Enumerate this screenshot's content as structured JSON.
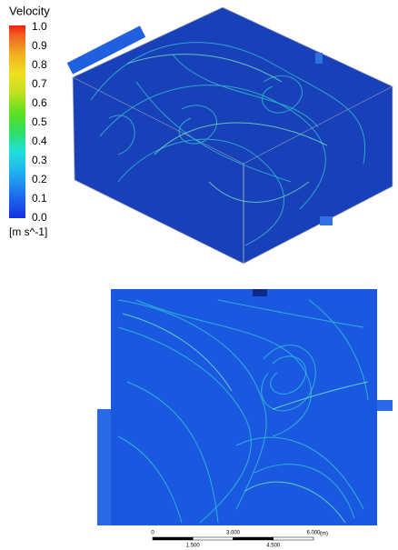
{
  "legend": {
    "title": "Velocity",
    "ticks": [
      {
        "value": 1,
        "label": "1.0"
      },
      {
        "value": 0.9,
        "label": "0.9"
      },
      {
        "value": 0.8,
        "label": "0.8"
      },
      {
        "value": 0.7,
        "label": "0.7"
      },
      {
        "value": 0.6,
        "label": "0.6"
      },
      {
        "value": 0.5,
        "label": "0.5"
      },
      {
        "value": 0.4,
        "label": "0.4"
      },
      {
        "value": 0.3,
        "label": "0.3"
      },
      {
        "value": 0.2,
        "label": "0.2"
      },
      {
        "value": 0.1,
        "label": "0.1"
      },
      {
        "value": 0,
        "label": "0.0"
      }
    ],
    "unit": "[m s^-1]"
  },
  "scale_bar": {
    "ticks": [
      0,
      {
        "value": 1.5,
        "label": "1.500"
      },
      {
        "value": 3,
        "label": "3.000"
      },
      {
        "value": 4.5,
        "label": "4.500"
      },
      {
        "value": 6,
        "label": "6.000"
      }
    ],
    "unit": "(m)"
  }
}
